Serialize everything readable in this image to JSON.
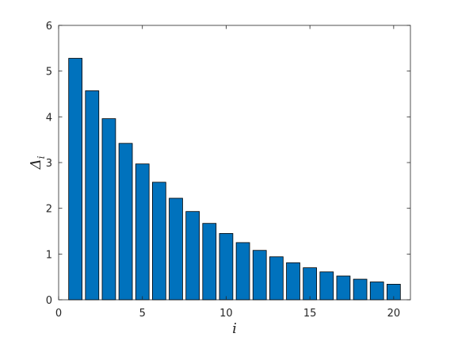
{
  "chart_data": {
    "type": "bar",
    "x": [
      1,
      2,
      3,
      4,
      5,
      6,
      7,
      8,
      9,
      10,
      11,
      12,
      13,
      14,
      15,
      16,
      17,
      18,
      19,
      20
    ],
    "values": [
      5.28,
      4.57,
      3.96,
      3.42,
      2.97,
      2.57,
      2.22,
      1.93,
      1.67,
      1.45,
      1.25,
      1.08,
      0.94,
      0.81,
      0.7,
      0.61,
      0.52,
      0.45,
      0.39,
      0.34
    ],
    "xlabel": "i",
    "ylabel": {
      "main": "Δ",
      "subscript": "i"
    },
    "xlim": [
      0,
      21
    ],
    "ylim": [
      0,
      6
    ],
    "xticks": [
      "0",
      "5",
      "10",
      "15",
      "20"
    ],
    "yticks": [
      "0",
      "1",
      "2",
      "3",
      "4",
      "5",
      "6"
    ],
    "grid": false,
    "bar_color": "#0072BD",
    "bar_edge_color": "#000000"
  }
}
